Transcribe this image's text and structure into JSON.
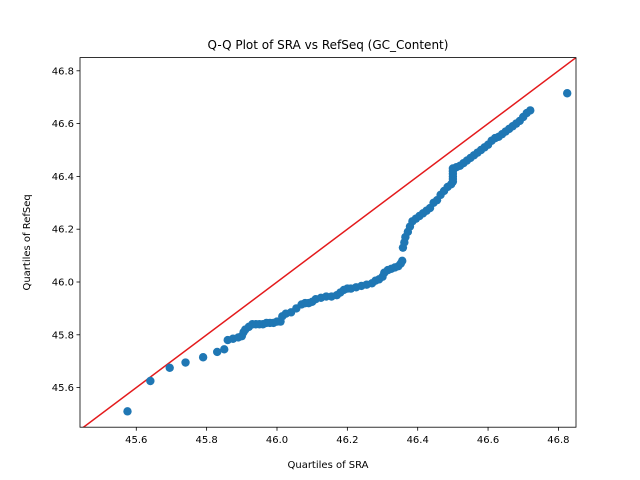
{
  "chart_data": {
    "type": "scatter",
    "title": "Q-Q Plot of SRA vs RefSeq (GC_Content)",
    "xlabel": "Quartiles of SRA",
    "ylabel": "Quartiles of RefSeq",
    "xlim": [
      45.44,
      46.85
    ],
    "ylim": [
      45.45,
      46.85
    ],
    "xticks": [
      45.6,
      45.8,
      46.0,
      46.2,
      46.4,
      46.6,
      46.8
    ],
    "yticks": [
      45.6,
      45.8,
      46.0,
      46.2,
      46.4,
      46.6,
      46.8
    ],
    "grid": false,
    "marker_color": "#1f77b4",
    "reference_line": {
      "color": "#e41a1c",
      "points": [
        [
          45.44,
          45.44
        ],
        [
          46.85,
          46.85
        ]
      ]
    },
    "points": [
      [
        45.575,
        45.51
      ],
      [
        45.64,
        45.625
      ],
      [
        45.695,
        45.675
      ],
      [
        45.74,
        45.695
      ],
      [
        45.79,
        45.715
      ],
      [
        45.83,
        45.735
      ],
      [
        45.85,
        45.745
      ],
      [
        45.86,
        45.78
      ],
      [
        45.875,
        45.785
      ],
      [
        45.89,
        45.79
      ],
      [
        45.9,
        45.795
      ],
      [
        45.905,
        45.81
      ],
      [
        45.91,
        45.82
      ],
      [
        45.92,
        45.83
      ],
      [
        45.93,
        45.84
      ],
      [
        45.94,
        45.84
      ],
      [
        45.95,
        45.84
      ],
      [
        45.96,
        45.84
      ],
      [
        45.97,
        45.845
      ],
      [
        45.98,
        45.845
      ],
      [
        45.99,
        45.845
      ],
      [
        46.0,
        45.85
      ],
      [
        46.01,
        45.85
      ],
      [
        46.015,
        45.87
      ],
      [
        46.025,
        45.88
      ],
      [
        46.04,
        45.885
      ],
      [
        46.055,
        45.9
      ],
      [
        46.07,
        45.915
      ],
      [
        46.08,
        45.92
      ],
      [
        46.09,
        45.92
      ],
      [
        46.1,
        45.925
      ],
      [
        46.11,
        45.935
      ],
      [
        46.125,
        45.94
      ],
      [
        46.14,
        45.945
      ],
      [
        46.155,
        45.945
      ],
      [
        46.17,
        45.95
      ],
      [
        46.18,
        45.96
      ],
      [
        46.19,
        45.97
      ],
      [
        46.2,
        45.975
      ],
      [
        46.21,
        45.975
      ],
      [
        46.225,
        45.98
      ],
      [
        46.24,
        45.985
      ],
      [
        46.255,
        45.99
      ],
      [
        46.27,
        45.995
      ],
      [
        46.28,
        46.005
      ],
      [
        46.29,
        46.01
      ],
      [
        46.3,
        46.02
      ],
      [
        46.305,
        46.035
      ],
      [
        46.315,
        46.045
      ],
      [
        46.325,
        46.05
      ],
      [
        46.335,
        46.055
      ],
      [
        46.345,
        46.06
      ],
      [
        46.352,
        46.07
      ],
      [
        46.356,
        46.08
      ],
      [
        46.358,
        46.13
      ],
      [
        46.362,
        46.15
      ],
      [
        46.365,
        46.17
      ],
      [
        46.372,
        46.19
      ],
      [
        46.378,
        46.21
      ],
      [
        46.385,
        46.23
      ],
      [
        46.395,
        46.24
      ],
      [
        46.405,
        46.25
      ],
      [
        46.415,
        46.26
      ],
      [
        46.425,
        46.27
      ],
      [
        46.435,
        46.28
      ],
      [
        46.445,
        46.3
      ],
      [
        46.455,
        46.31
      ],
      [
        46.465,
        46.33
      ],
      [
        46.475,
        46.345
      ],
      [
        46.485,
        46.36
      ],
      [
        46.495,
        46.37
      ],
      [
        46.5,
        46.38
      ],
      [
        46.5,
        46.39
      ],
      [
        46.5,
        46.4
      ],
      [
        46.5,
        46.41
      ],
      [
        46.5,
        46.42
      ],
      [
        46.5,
        46.43
      ],
      [
        46.51,
        46.435
      ],
      [
        46.52,
        46.44
      ],
      [
        46.53,
        46.45
      ],
      [
        46.54,
        46.46
      ],
      [
        46.55,
        46.47
      ],
      [
        46.56,
        46.48
      ],
      [
        46.57,
        46.49
      ],
      [
        46.58,
        46.5
      ],
      [
        46.59,
        46.51
      ],
      [
        46.6,
        46.52
      ],
      [
        46.61,
        46.535
      ],
      [
        46.62,
        46.545
      ],
      [
        46.63,
        46.55
      ],
      [
        46.64,
        46.56
      ],
      [
        46.65,
        46.57
      ],
      [
        46.66,
        46.58
      ],
      [
        46.67,
        46.59
      ],
      [
        46.68,
        46.6
      ],
      [
        46.69,
        46.61
      ],
      [
        46.7,
        46.625
      ],
      [
        46.71,
        46.64
      ],
      [
        46.72,
        46.65
      ],
      [
        46.825,
        46.715
      ]
    ]
  }
}
